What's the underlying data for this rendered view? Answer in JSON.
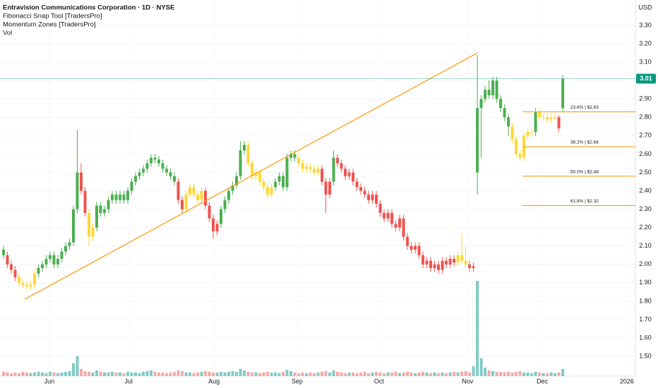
{
  "chart_data": {
    "type": "candlestick",
    "title": "Entravision Communications Corporation · 1D · NYSE",
    "indicators": [
      "Fibonacci Snap Tool [TradersPro]",
      "Momentum Zones [TradersPro]"
    ],
    "volume_label": "Vol",
    "currency": "USD",
    "xlim": [
      -0.9,
      162.7
    ],
    "xticks": [
      {
        "value": 11.8,
        "label": "Jun"
      },
      {
        "value": 32.2,
        "label": "Jul"
      },
      {
        "value": 54.2,
        "label": "Aug"
      },
      {
        "value": 75.6,
        "label": "Sep"
      },
      {
        "value": 96.7,
        "label": "Oct"
      },
      {
        "value": 119.5,
        "label": "Nov"
      },
      {
        "value": 138.7,
        "label": "Dec"
      },
      {
        "value": 160.5,
        "label": "2026"
      }
    ],
    "ylim": [
      1.393,
      3.438
    ],
    "yticks": [
      {
        "value": 1.5,
        "label": "1.50"
      },
      {
        "value": 1.6,
        "label": "1.60"
      },
      {
        "value": 1.7,
        "label": "1.70"
      },
      {
        "value": 1.8,
        "label": "1.80"
      },
      {
        "value": 1.9,
        "label": "1.90"
      },
      {
        "value": 2.0,
        "label": "2.00"
      },
      {
        "value": 2.1,
        "label": "2.10"
      },
      {
        "value": 2.2,
        "label": "2.20"
      },
      {
        "value": 2.3,
        "label": "2.30"
      },
      {
        "value": 2.4,
        "label": "2.40"
      },
      {
        "value": 2.5,
        "label": "2.50"
      },
      {
        "value": 2.6,
        "label": "2.60"
      },
      {
        "value": 2.7,
        "label": "2.70"
      },
      {
        "value": 2.8,
        "label": "2.80"
      },
      {
        "value": 2.9,
        "label": "2.90"
      },
      {
        "value": 3.0,
        "label": "3.00"
      },
      {
        "value": 3.1,
        "label": "3.10"
      },
      {
        "value": 3.2,
        "label": "3.20"
      },
      {
        "value": 3.3,
        "label": "3.30"
      }
    ],
    "grid": true,
    "open": [
      2.08,
      2.05,
      2.0,
      1.97,
      1.93,
      1.9,
      1.89,
      1.88,
      1.89,
      1.95,
      1.98,
      2.0,
      2.03,
      2.05,
      2.0,
      2.03,
      2.07,
      2.1,
      2.12,
      2.3,
      2.5,
      2.4,
      2.28,
      2.15,
      2.2,
      2.32,
      2.28,
      2.3,
      2.35,
      2.38,
      2.35,
      2.38,
      2.35,
      2.4,
      2.45,
      2.48,
      2.5,
      2.52,
      2.55,
      2.58,
      2.57,
      2.55,
      2.52,
      2.5,
      2.48,
      2.45,
      2.35,
      2.3,
      2.38,
      2.42,
      2.38,
      2.35,
      2.4,
      2.32,
      2.25,
      2.18,
      2.22,
      2.3,
      2.35,
      2.4,
      2.43,
      2.48,
      2.62,
      2.65,
      2.55,
      2.48,
      2.5,
      2.45,
      2.42,
      2.38,
      2.42,
      2.45,
      2.48,
      2.42,
      2.58,
      2.6,
      2.58,
      2.55,
      2.52,
      2.53,
      2.52,
      2.5,
      2.52,
      2.45,
      2.38,
      2.45,
      2.58,
      2.55,
      2.52,
      2.48,
      2.5,
      2.45,
      2.42,
      2.4,
      2.38,
      2.35,
      2.38,
      2.33,
      2.28,
      2.25,
      2.28,
      2.22,
      2.2,
      2.25,
      2.15,
      2.1,
      2.08,
      2.1,
      2.05,
      2.0,
      2.02,
      1.98,
      2.0,
      1.97,
      2.02,
      2.0,
      2.03,
      2.01,
      2.05,
      2.02,
      2.0,
      1.98,
      2.5,
      2.85,
      2.9,
      2.95,
      2.92,
      3.0,
      2.9,
      2.85,
      2.8,
      2.75,
      2.68,
      2.6,
      2.58,
      2.7,
      2.72,
      2.72,
      2.83,
      2.8,
      2.8,
      2.79,
      2.8,
      2.8,
      2.85
    ],
    "high": [
      2.1,
      2.07,
      2.02,
      1.99,
      1.95,
      1.92,
      1.91,
      1.91,
      1.97,
      2.0,
      2.02,
      2.05,
      2.07,
      2.07,
      2.05,
      2.09,
      2.12,
      2.14,
      2.32,
      2.73,
      2.55,
      2.42,
      2.3,
      2.22,
      2.34,
      2.34,
      2.32,
      2.37,
      2.4,
      2.4,
      2.4,
      2.4,
      2.42,
      2.47,
      2.5,
      2.52,
      2.54,
      2.57,
      2.6,
      2.6,
      2.59,
      2.57,
      2.54,
      2.52,
      2.5,
      2.47,
      2.37,
      2.4,
      2.44,
      2.44,
      2.4,
      2.42,
      2.42,
      2.34,
      2.27,
      2.24,
      2.32,
      2.37,
      2.42,
      2.45,
      2.5,
      2.67,
      2.67,
      2.67,
      2.57,
      2.52,
      2.52,
      2.47,
      2.44,
      2.44,
      2.47,
      2.5,
      2.5,
      2.6,
      2.62,
      2.62,
      2.6,
      2.57,
      2.55,
      2.55,
      2.54,
      2.54,
      2.54,
      2.47,
      2.47,
      2.62,
      2.6,
      2.57,
      2.54,
      2.52,
      2.52,
      2.47,
      2.44,
      2.42,
      2.4,
      2.4,
      2.4,
      2.35,
      2.3,
      2.3,
      2.3,
      2.24,
      2.27,
      2.27,
      2.17,
      2.12,
      2.12,
      2.12,
      2.07,
      2.04,
      2.04,
      2.02,
      2.02,
      2.04,
      2.04,
      2.05,
      2.05,
      2.07,
      2.17,
      2.1,
      2.02,
      2.01,
      3.14,
      2.92,
      2.97,
      3.0,
      3.02,
      3.02,
      2.92,
      2.87,
      2.82,
      2.77,
      2.7,
      2.62,
      2.72,
      2.74,
      2.74,
      2.85,
      2.85,
      2.82,
      2.82,
      2.82,
      2.82,
      2.81,
      3.03
    ],
    "low": [
      2.03,
      1.98,
      1.95,
      1.91,
      1.88,
      1.87,
      1.86,
      1.86,
      1.87,
      1.93,
      1.96,
      1.98,
      2.01,
      1.98,
      1.98,
      2.01,
      2.05,
      2.08,
      2.1,
      2.28,
      2.38,
      2.26,
      2.1,
      2.13,
      2.18,
      2.26,
      2.26,
      2.28,
      2.33,
      2.33,
      2.33,
      2.33,
      2.33,
      2.38,
      2.43,
      2.46,
      2.48,
      2.5,
      2.53,
      2.55,
      2.53,
      2.5,
      2.48,
      2.46,
      2.43,
      2.33,
      2.28,
      2.28,
      2.36,
      2.36,
      2.33,
      2.33,
      2.3,
      2.23,
      2.14,
      2.16,
      2.2,
      2.28,
      2.33,
      2.38,
      2.41,
      2.46,
      2.6,
      2.53,
      2.46,
      2.46,
      2.43,
      2.4,
      2.36,
      2.36,
      2.4,
      2.43,
      2.4,
      2.4,
      2.56,
      2.56,
      2.53,
      2.5,
      2.5,
      2.5,
      2.48,
      2.48,
      2.43,
      2.28,
      2.36,
      2.43,
      2.53,
      2.5,
      2.46,
      2.46,
      2.43,
      2.4,
      2.38,
      2.36,
      2.33,
      2.33,
      2.31,
      2.26,
      2.23,
      2.23,
      2.2,
      2.18,
      2.18,
      2.13,
      2.08,
      2.06,
      2.06,
      2.03,
      1.98,
      1.98,
      1.96,
      1.96,
      1.95,
      1.95,
      1.98,
      1.98,
      1.99,
      1.99,
      2.0,
      1.98,
      1.96,
      1.96,
      2.38,
      2.58,
      2.88,
      2.9,
      2.9,
      2.88,
      2.83,
      2.78,
      2.7,
      2.66,
      2.58,
      2.56,
      2.56,
      2.68,
      2.7,
      2.7,
      2.78,
      2.78,
      2.77,
      2.77,
      2.78,
      2.72,
      2.83
    ],
    "close": [
      2.05,
      2.0,
      1.97,
      1.93,
      1.9,
      1.89,
      1.88,
      1.89,
      1.95,
      1.98,
      2.0,
      2.03,
      2.05,
      2.0,
      2.03,
      2.07,
      2.1,
      2.12,
      2.3,
      2.5,
      2.4,
      2.28,
      2.15,
      2.2,
      2.32,
      2.28,
      2.3,
      2.35,
      2.38,
      2.35,
      2.38,
      2.35,
      2.4,
      2.45,
      2.48,
      2.5,
      2.52,
      2.55,
      2.58,
      2.57,
      2.55,
      2.52,
      2.5,
      2.48,
      2.45,
      2.35,
      2.3,
      2.38,
      2.42,
      2.38,
      2.35,
      2.4,
      2.32,
      2.25,
      2.18,
      2.22,
      2.3,
      2.35,
      2.4,
      2.43,
      2.48,
      2.62,
      2.65,
      2.55,
      2.48,
      2.5,
      2.45,
      2.42,
      2.38,
      2.42,
      2.45,
      2.48,
      2.42,
      2.58,
      2.6,
      2.58,
      2.55,
      2.52,
      2.53,
      2.52,
      2.5,
      2.52,
      2.45,
      2.38,
      2.45,
      2.58,
      2.55,
      2.52,
      2.48,
      2.5,
      2.45,
      2.42,
      2.4,
      2.38,
      2.35,
      2.38,
      2.33,
      2.28,
      2.25,
      2.28,
      2.22,
      2.2,
      2.25,
      2.15,
      2.1,
      2.08,
      2.1,
      2.05,
      2.0,
      2.02,
      1.98,
      2.0,
      1.97,
      2.02,
      2.0,
      2.03,
      2.01,
      2.05,
      2.02,
      2.0,
      1.98,
      1.99,
      2.85,
      2.9,
      2.95,
      2.92,
      3.0,
      2.9,
      2.85,
      2.8,
      2.75,
      2.68,
      2.6,
      2.58,
      2.7,
      2.72,
      2.72,
      2.83,
      2.8,
      2.8,
      2.79,
      2.8,
      2.8,
      2.74,
      3.01
    ],
    "colors": [
      "#4caf50",
      "#ef5350",
      "#ef5350",
      "#ef5350",
      "#fdd835",
      "#fdd835",
      "#fdd835",
      "#fdd835",
      "#fdd835",
      "#4caf50",
      "#4caf50",
      "#4caf50",
      "#4caf50",
      "#4caf50",
      "#4caf50",
      "#4caf50",
      "#4caf50",
      "#4caf50",
      "#4caf50",
      "#4caf50",
      "#ef5350",
      "#ef5350",
      "#fdd835",
      "#fdd835",
      "#4caf50",
      "#4caf50",
      "#4caf50",
      "#4caf50",
      "#4caf50",
      "#4caf50",
      "#4caf50",
      "#4caf50",
      "#4caf50",
      "#4caf50",
      "#4caf50",
      "#4caf50",
      "#4caf50",
      "#4caf50",
      "#4caf50",
      "#4caf50",
      "#4caf50",
      "#4caf50",
      "#4caf50",
      "#4caf50",
      "#4caf50",
      "#ef5350",
      "#ef5350",
      "#fdd835",
      "#fdd835",
      "#fdd835",
      "#fdd835",
      "#fdd835",
      "#ef5350",
      "#ef5350",
      "#ef5350",
      "#ef5350",
      "#4caf50",
      "#4caf50",
      "#4caf50",
      "#4caf50",
      "#4caf50",
      "#4caf50",
      "#4caf50",
      "#fdd835",
      "#fdd835",
      "#fdd835",
      "#fdd835",
      "#fdd835",
      "#fdd835",
      "#fdd835",
      "#4caf50",
      "#4caf50",
      "#4caf50",
      "#4caf50",
      "#4caf50",
      "#4caf50",
      "#fdd835",
      "#fdd835",
      "#fdd835",
      "#fdd835",
      "#fdd835",
      "#fdd835",
      "#ef5350",
      "#ef5350",
      "#ef5350",
      "#4caf50",
      "#ef5350",
      "#ef5350",
      "#ef5350",
      "#ef5350",
      "#ef5350",
      "#ef5350",
      "#ef5350",
      "#ef5350",
      "#ef5350",
      "#ef5350",
      "#ef5350",
      "#ef5350",
      "#ef5350",
      "#ef5350",
      "#ef5350",
      "#ef5350",
      "#ef5350",
      "#ef5350",
      "#ef5350",
      "#ef5350",
      "#ef5350",
      "#ef5350",
      "#ef5350",
      "#ef5350",
      "#ef5350",
      "#ef5350",
      "#ef5350",
      "#ef5350",
      "#ef5350",
      "#ef5350",
      "#ef5350",
      "#fdd835",
      "#fdd835",
      "#fdd835",
      "#ef5350",
      "#ef5350",
      "#4caf50",
      "#4caf50",
      "#4caf50",
      "#4caf50",
      "#4caf50",
      "#4caf50",
      "#4caf50",
      "#4caf50",
      "#4caf50",
      "#fdd835",
      "#fdd835",
      "#fdd835",
      "#fdd835",
      "#fdd835",
      "#fdd835",
      "#4caf50",
      "#fdd835",
      "#fdd835",
      "#fdd835",
      "#fdd835",
      "#fdd835",
      "#ef5350",
      "#4caf50"
    ],
    "volume": [
      6,
      5,
      4,
      5,
      4,
      6,
      5,
      4,
      5,
      6,
      5,
      4,
      6,
      5,
      4,
      5,
      6,
      7,
      18,
      28,
      10,
      7,
      6,
      5,
      8,
      6,
      5,
      5,
      6,
      5,
      5,
      4,
      6,
      5,
      5,
      4,
      6,
      7,
      8,
      6,
      5,
      5,
      4,
      5,
      6,
      8,
      7,
      5,
      5,
      4,
      5,
      6,
      7,
      6,
      5,
      5,
      6,
      5,
      6,
      7,
      6,
      10,
      8,
      6,
      5,
      5,
      4,
      5,
      6,
      5,
      5,
      4,
      6,
      9,
      7,
      5,
      4,
      5,
      4,
      5,
      4,
      5,
      6,
      7,
      5,
      8,
      6,
      5,
      4,
      5,
      5,
      4,
      5,
      6,
      4,
      5,
      6,
      5,
      4,
      5,
      5,
      6,
      4,
      5,
      6,
      5,
      4,
      5,
      6,
      5,
      4,
      5,
      4,
      5,
      4,
      5,
      6,
      5,
      6,
      7,
      5,
      14,
      135,
      25,
      12,
      8,
      7,
      6,
      6,
      5,
      6,
      5,
      6,
      7,
      5,
      5,
      4,
      6,
      5,
      4,
      4,
      5,
      4,
      5,
      10
    ],
    "volume_up_color": "#80cbc4",
    "volume_down_color": "#f7a9a7",
    "trendline": {
      "x": [
        5.45,
        122
      ],
      "y": [
        1.81,
        3.15
      ],
      "color": "#ff9800"
    },
    "fib_x_start": 133.6,
    "fib_color": "#f5a623",
    "fib_levels": [
      {
        "label": "23.6% | $2.83",
        "value": 2.83
      },
      {
        "label": "38.2% | $2.64",
        "value": 2.64
      },
      {
        "label": "50.0% | $2.48",
        "value": 2.48
      },
      {
        "label": "61.8% | $2.32",
        "value": 2.32
      }
    ],
    "last_price": 3.01,
    "last_price_color": "#089981"
  }
}
